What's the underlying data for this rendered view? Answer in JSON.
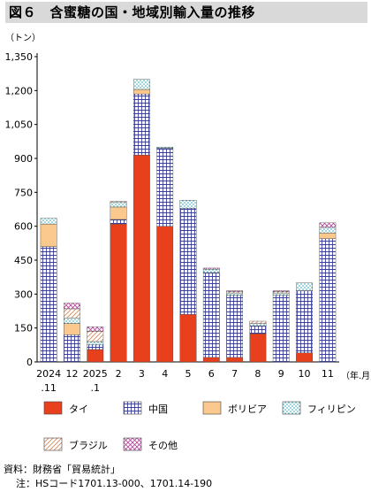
{
  "title": "図６　含蜜糖の国・地域別輸入量の推移",
  "chart_data": {
    "type": "bar",
    "stacked": true,
    "ylabel": "（トン）",
    "xlabel": "（年.月）",
    "ylim": [
      0,
      1350
    ],
    "yticks": [
      0,
      150,
      300,
      450,
      600,
      750,
      900,
      "1,050",
      "1,200",
      "1,350"
    ],
    "ytick_values": [
      0,
      150,
      300,
      450,
      600,
      750,
      900,
      1050,
      1200,
      1350
    ],
    "grid": false,
    "categories": [
      {
        "line1": "2024",
        "line2": ".11"
      },
      {
        "line1": "12",
        "line2": ""
      },
      {
        "line1": "2025",
        "line2": ".1"
      },
      {
        "line1": "2",
        "line2": ""
      },
      {
        "line1": "3",
        "line2": ""
      },
      {
        "line1": "4",
        "line2": ""
      },
      {
        "line1": "5",
        "line2": ""
      },
      {
        "line1": "6",
        "line2": ""
      },
      {
        "line1": "7",
        "line2": ""
      },
      {
        "line1": "8",
        "line2": ""
      },
      {
        "line1": "9",
        "line2": ""
      },
      {
        "line1": "10",
        "line2": ""
      },
      {
        "line1": "11",
        "line2": ""
      }
    ],
    "series": [
      {
        "name": "タイ",
        "color": "#e8401c",
        "pattern": "solid",
        "values": [
          0,
          0,
          55,
          610,
          915,
          600,
          210,
          20,
          20,
          125,
          0,
          40,
          0
        ]
      },
      {
        "name": "中国",
        "color": "#3b3f9e",
        "pattern": "grid",
        "values": [
          510,
          120,
          20,
          20,
          270,
          345,
          470,
          375,
          275,
          35,
          295,
          275,
          545
        ]
      },
      {
        "name": "ボリビア",
        "color": "#f5a54a",
        "pattern": "solid-light",
        "values": [
          100,
          50,
          0,
          55,
          20,
          0,
          0,
          0,
          0,
          0,
          0,
          0,
          25
        ]
      },
      {
        "name": "フィリピン",
        "color": "#2fa6b8",
        "pattern": "dots",
        "values": [
          25,
          25,
          15,
          20,
          45,
          5,
          35,
          15,
          10,
          10,
          10,
          35,
          25
        ]
      },
      {
        "name": "ブラジル",
        "color": "#d88a5a",
        "pattern": "hatch",
        "values": [
          0,
          40,
          45,
          5,
          0,
          0,
          0,
          0,
          5,
          10,
          5,
          0,
          0
        ]
      },
      {
        "name": "その他",
        "color": "#b5409a",
        "pattern": "cross",
        "values": [
          0,
          25,
          20,
          0,
          0,
          0,
          0,
          5,
          5,
          0,
          5,
          0,
          20
        ]
      }
    ],
    "legend_placement": "bottom"
  },
  "notes": {
    "source": "資料：財務省「貿易統計」",
    "note": "注：HSコード1701.13-000、1701.14-190"
  }
}
